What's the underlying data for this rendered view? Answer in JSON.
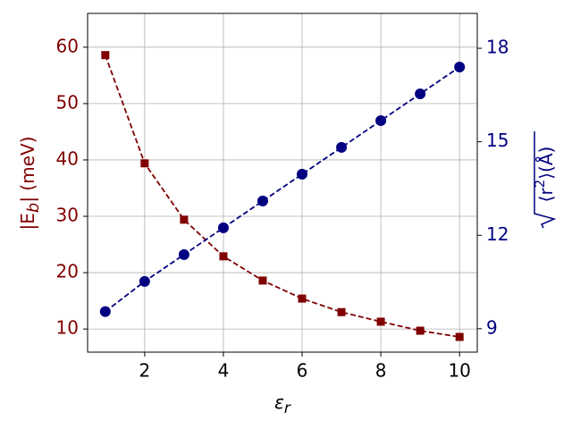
{
  "chart_data": {
    "type": "line",
    "x": [
      1,
      2,
      3,
      4,
      5,
      6,
      7,
      8,
      9,
      10
    ],
    "xlabel": [
      "ε",
      "r"
    ],
    "ylabel": [
      "|E",
      "b",
      "| (meV)"
    ],
    "y2label": [
      "⟨r",
      "2",
      "⟩(Å)"
    ],
    "xlim": [
      0.55,
      10.45
    ],
    "xticks": [
      2,
      4,
      6,
      8,
      10
    ],
    "ylim": [
      5.9,
      66
    ],
    "yticks": [
      10,
      20,
      30,
      40,
      50,
      60
    ],
    "y2lim": [
      8.25,
      19.12
    ],
    "y2ticks": [
      9,
      12,
      15,
      18
    ],
    "grid": true,
    "series": [
      {
        "color": "#800000",
        "marker": "square",
        "values": [
          58.6,
          39.4,
          29.4,
          22.9,
          18.6,
          15.4,
          13.0,
          11.3,
          9.7,
          8.6
        ]
      },
      {
        "color": "#000080",
        "marker": "circle",
        "axis": "y2",
        "values": [
          9.55,
          10.52,
          11.38,
          12.24,
          13.1,
          13.96,
          14.82,
          15.68,
          16.54,
          17.4
        ]
      }
    ]
  }
}
